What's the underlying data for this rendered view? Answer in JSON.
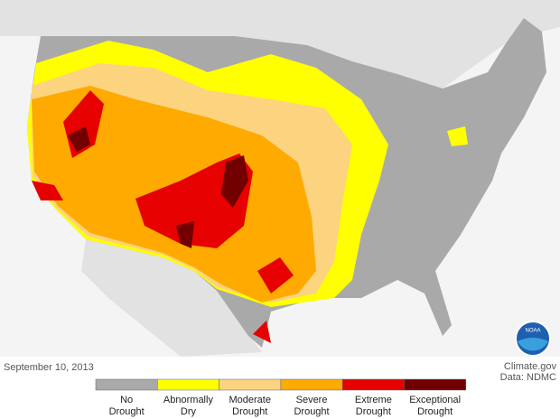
{
  "map": {
    "date": "September 10, 2013",
    "credit": [
      "Climate.gov",
      "Data: NDMC"
    ],
    "logo": "NOAA",
    "legend": [
      {
        "lines": [
          "No",
          "Drought"
        ],
        "color": "#a9a9a9"
      },
      {
        "lines": [
          "Abnormally",
          "Dry"
        ],
        "color": "#ffff00"
      },
      {
        "lines": [
          "Moderate",
          "Drought"
        ],
        "color": "#fcd37f"
      },
      {
        "lines": [
          "Severe",
          "Drought"
        ],
        "color": "#ffaa00"
      },
      {
        "lines": [
          "Extreme",
          "Drought"
        ],
        "color": "#e60000"
      },
      {
        "lines": [
          "Exceptional",
          "Drought"
        ],
        "color": "#730000"
      }
    ]
  }
}
